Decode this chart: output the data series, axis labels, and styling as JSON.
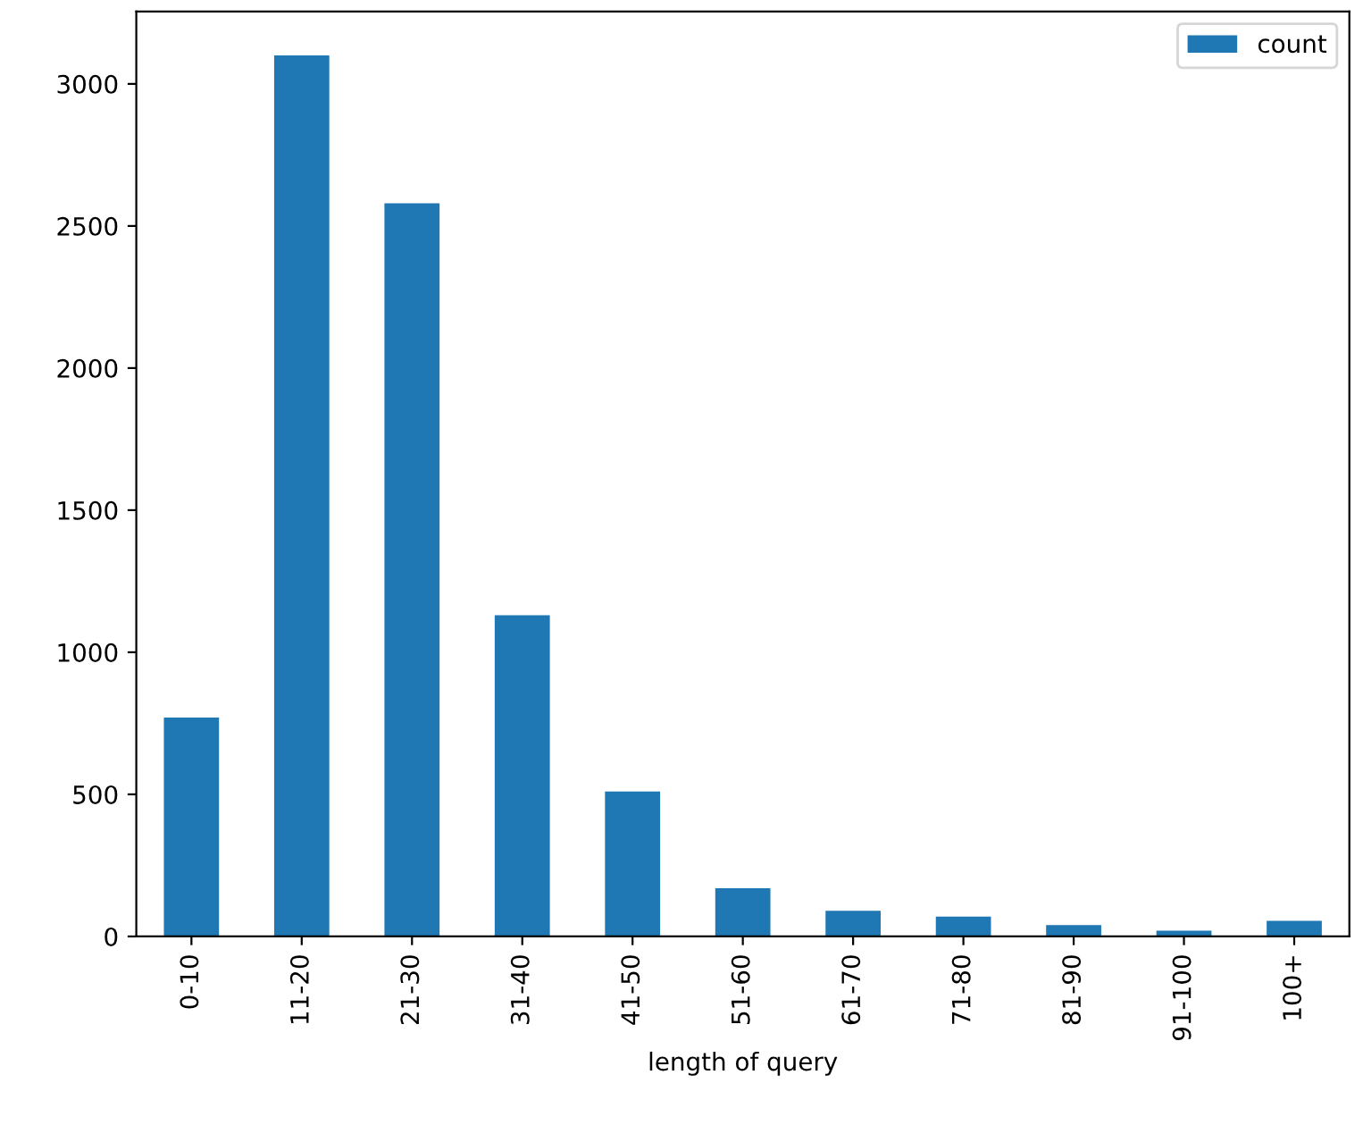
{
  "chart_data": {
    "type": "bar",
    "xlabel": "length of query",
    "categories": [
      "0-10",
      "11-20",
      "21-30",
      "31-40",
      "41-50",
      "51-60",
      "61-70",
      "71-80",
      "81-90",
      "91-100",
      "100+"
    ],
    "series": [
      {
        "name": "count",
        "color": "#1f77b4",
        "values": [
          770,
          3100,
          2580,
          1130,
          510,
          170,
          90,
          70,
          40,
          20,
          55
        ]
      }
    ],
    "ylim": [
      0,
      3255
    ],
    "yticks": [
      0,
      500,
      1000,
      1500,
      2000,
      2500,
      3000
    ],
    "grid": false,
    "legend": "top right"
  }
}
